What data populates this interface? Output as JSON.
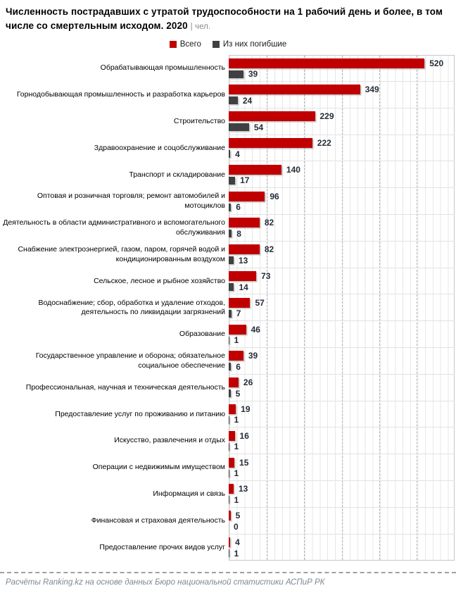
{
  "title": {
    "main": "Численность пострадавших с утратой трудоспособности на 1 рабочий день и более, в том числе со смертельным исходом. 2020",
    "unit_suffix": "| чел."
  },
  "legend": [
    {
      "label": "Всего",
      "color": "#c00000"
    },
    {
      "label": "Из них погибшие",
      "color": "#404040"
    }
  ],
  "footer": {
    "source": "Расчёты Ranking.kz на основе данных Бюро национальной статистики АСПиР РК"
  },
  "chart_data": {
    "type": "bar",
    "orientation": "horizontal",
    "title": "Численность пострадавших с утратой трудоспособности на 1 рабочий день и более, в том числе со смертельным исходом. 2020",
    "unit": "чел.",
    "year": "2020",
    "xlim": [
      0,
      600
    ],
    "grid_major_interval": 100,
    "grid_minor_interval": 20,
    "grid": true,
    "legend_position": "top",
    "categories": [
      "Обрабатывающая промышленность",
      "Горнодобывающая промышленность и разработка карьеров",
      "Строительство",
      "Здравоохранение и соцобслуживание",
      "Транспорт и складирование",
      "Оптовая и розничная торговля; ремонт автомобилей и мотоциклов",
      "Деятельность в области административного и вспомогательного обслуживания",
      "Снабжение электроэнергией, газом, паром, горячей водой и кондиционированным воздухом",
      "Сельское, лесное и рыбное хозяйство",
      "Водоснабжение; сбор, обработка и удаление отходов, деятельность по ликвидации загрязнений",
      "Образование",
      "Государственное управление и оборона; обязательное социальное обеспечение",
      "Профессиональная, научная и техническая деятельность",
      "Предоставление услуг по проживанию и питанию",
      "Искусство, развлечения и отдых",
      "Операции с недвижимым имуществом",
      "Информация и связь",
      "Финансовая и страховая деятельность",
      "Предоставление прочих видов услуг"
    ],
    "series": [
      {
        "name": "Всего",
        "color": "#c00000",
        "values": [
          520,
          349,
          229,
          222,
          140,
          96,
          82,
          82,
          73,
          57,
          46,
          39,
          26,
          19,
          16,
          15,
          13,
          5,
          4
        ]
      },
      {
        "name": "Из них погибшие",
        "color": "#404040",
        "values": [
          39,
          24,
          54,
          4,
          17,
          6,
          8,
          13,
          14,
          7,
          1,
          6,
          5,
          1,
          1,
          1,
          1,
          0,
          1
        ]
      }
    ]
  }
}
